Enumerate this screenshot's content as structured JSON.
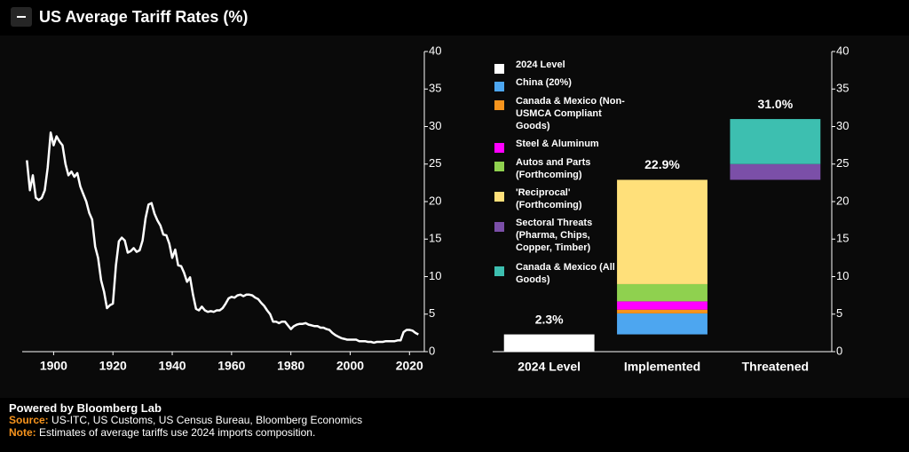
{
  "title": "US Average Tariff Rates (%)",
  "footer": {
    "powered": "Powered by Bloomberg Lab",
    "source_label": "Source:",
    "source": "US-ITC, US Customs, US Census Bureau, Bloomberg Economics",
    "note_label": "Note:",
    "note": "Estimates of average tariffs use 2024 imports composition."
  },
  "chart_data": [
    {
      "type": "line",
      "x": [
        1891,
        1892,
        1893,
        1894,
        1895,
        1896,
        1897,
        1898,
        1899,
        1900,
        1901,
        1902,
        1903,
        1904,
        1905,
        1906,
        1907,
        1908,
        1909,
        1910,
        1911,
        1912,
        1913,
        1914,
        1915,
        1916,
        1917,
        1918,
        1919,
        1920,
        1921,
        1922,
        1923,
        1924,
        1925,
        1926,
        1927,
        1928,
        1929,
        1930,
        1931,
        1932,
        1933,
        1934,
        1935,
        1936,
        1937,
        1938,
        1939,
        1940,
        1941,
        1942,
        1943,
        1944,
        1945,
        1946,
        1947,
        1948,
        1949,
        1950,
        1951,
        1952,
        1953,
        1954,
        1955,
        1956,
        1957,
        1958,
        1959,
        1960,
        1961,
        1962,
        1963,
        1964,
        1965,
        1966,
        1967,
        1968,
        1969,
        1970,
        1971,
        1972,
        1973,
        1974,
        1975,
        1976,
        1977,
        1978,
        1979,
        1980,
        1981,
        1982,
        1983,
        1984,
        1985,
        1986,
        1987,
        1988,
        1989,
        1990,
        1991,
        1992,
        1993,
        1994,
        1995,
        1996,
        1997,
        1998,
        1999,
        2000,
        2001,
        2002,
        2003,
        2004,
        2005,
        2006,
        2007,
        2008,
        2009,
        2010,
        2011,
        2012,
        2013,
        2014,
        2015,
        2016,
        2017,
        2018,
        2019,
        2020,
        2021,
        2022,
        2023
      ],
      "series": [
        {
          "color": "#ffffff",
          "values": [
            25.5,
            21.5,
            23.5,
            20.5,
            20.2,
            20.5,
            21.5,
            24.5,
            29.2,
            27.5,
            28.7,
            28,
            27.5,
            25,
            23.5,
            24,
            23.3,
            23.8,
            22,
            21,
            20,
            18.5,
            17.6,
            14,
            12.5,
            9.5,
            8,
            5.8,
            6.2,
            6.4,
            11.5,
            14.7,
            15.2,
            14.8,
            13.2,
            13.4,
            13.8,
            13.3,
            13.5,
            14.8,
            17.8,
            19.6,
            19.8,
            18.4,
            17.5,
            16.8,
            15.6,
            15.5,
            14.4,
            12.5,
            13.6,
            11.5,
            11.4,
            10.5,
            9.3,
            9.9,
            7.6,
            5.7,
            5.5,
            6,
            5.5,
            5.3,
            5.4,
            5.3,
            5.5,
            5.5,
            5.8,
            6.4,
            7.1,
            7.3,
            7.2,
            7.5,
            7.6,
            7.4,
            7.6,
            7.6,
            7.5,
            7.2,
            7,
            6.5,
            6.1,
            5.5,
            5,
            4,
            4,
            3.8,
            4,
            4,
            3.5,
            3,
            3.4,
            3.6,
            3.7,
            3.7,
            3.8,
            3.6,
            3.5,
            3.4,
            3.4,
            3.2,
            3.2,
            3,
            2.9,
            2.5,
            2.2,
            2,
            1.8,
            1.7,
            1.6,
            1.6,
            1.6,
            1.6,
            1.4,
            1.4,
            1.4,
            1.3,
            1.3,
            1.2,
            1.3,
            1.3,
            1.3,
            1.4,
            1.4,
            1.4,
            1.4,
            1.5,
            1.5,
            2.6,
            2.9,
            2.9,
            2.8,
            2.5,
            2.3
          ]
        }
      ],
      "xlim": [
        1890,
        2025
      ],
      "xticks": [
        1900,
        1920,
        1940,
        1960,
        1980,
        2000,
        2020
      ],
      "ylim": [
        0,
        40
      ],
      "yticks": [
        0,
        5,
        10,
        15,
        20,
        25,
        30,
        35,
        40
      ]
    },
    {
      "type": "waterfall",
      "categories": [
        "2024 Level",
        "Implemented",
        "Threatened"
      ],
      "total_labels": [
        "2.3%",
        "22.9%",
        "31.0%"
      ],
      "series": [
        {
          "name": "2024 Level",
          "color": "#ffffff",
          "values": [
            2.3,
            null,
            null
          ]
        },
        {
          "name": "China (20%)",
          "color": "#4da6f0",
          "values": [
            null,
            2.8,
            null
          ]
        },
        {
          "name": "Canada & Mexico (Non-USMCA Compliant Goods)",
          "color": "#f7941d",
          "values": [
            null,
            0.5,
            null
          ]
        },
        {
          "name": "Steel & Aluminum",
          "color": "#ff00ff",
          "values": [
            null,
            1.1,
            null
          ]
        },
        {
          "name": "Autos and Parts (Forthcoming)",
          "color": "#8fd14f",
          "values": [
            null,
            2.3,
            null
          ]
        },
        {
          "name": "'Reciprocal' (Forthcoming)",
          "color": "#ffe07a",
          "values": [
            null,
            13.9,
            null
          ]
        },
        {
          "name": "Sectoral Threats (Pharma, Chips, Copper, Timber)",
          "color": "#7b4fa8",
          "values": [
            null,
            null,
            2.1
          ]
        },
        {
          "name": "Canada & Mexico (All Goods)",
          "color": "#3dbfb0",
          "values": [
            null,
            null,
            6.0
          ]
        }
      ],
      "legend": "upper left",
      "ylim": [
        0,
        40
      ],
      "yticks": [
        0,
        5,
        10,
        15,
        20,
        25,
        30,
        35,
        40
      ]
    }
  ]
}
